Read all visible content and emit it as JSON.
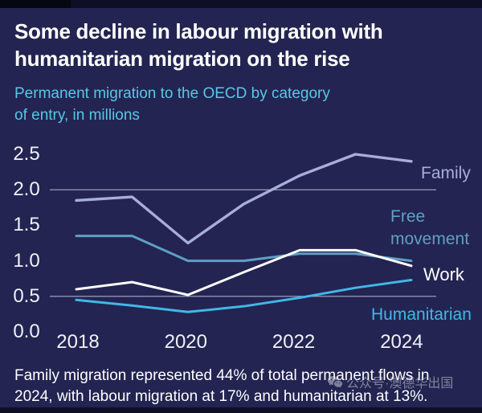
{
  "header": {
    "title": "Some decline in labour migration with\nhumanitarian migration on the rise",
    "subtitle": "Permanent migration to the OECD by category\nof entry, in millions"
  },
  "chart_data": {
    "type": "line",
    "title": "Some decline in labour migration with humanitarian migration on the rise",
    "subtitle": "Permanent migration to the OECD by category of entry, in millions",
    "unit": "millions",
    "x": [
      2018,
      2019,
      2020,
      2021,
      2022,
      2023,
      2024
    ],
    "x_tick_labels": [
      "2018",
      "2020",
      "2022",
      "2024"
    ],
    "y_ticks": [
      "2.5",
      "2.0",
      "1.5",
      "1.0",
      "0.5",
      "0.0"
    ],
    "ylim": [
      0.0,
      2.5
    ],
    "gridline_values": [
      2.0,
      0.5
    ],
    "grid_on": false,
    "legend_position": "right-inline",
    "series": [
      {
        "name": "Family",
        "color": "#a8aed8",
        "values": [
          1.85,
          1.9,
          1.25,
          1.8,
          2.2,
          2.5,
          2.4
        ]
      },
      {
        "name": "Free movement",
        "color": "#5f9fc4",
        "values": [
          1.35,
          1.35,
          1.0,
          1.0,
          1.1,
          1.1,
          1.0
        ]
      },
      {
        "name": "Work",
        "color": "#ffffff",
        "values": [
          0.6,
          0.7,
          0.52,
          0.84,
          1.15,
          1.15,
          0.93
        ]
      },
      {
        "name": "Humanitarian",
        "color": "#41b7e8",
        "values": [
          0.45,
          0.37,
          0.28,
          0.36,
          0.48,
          0.62,
          0.73
        ]
      }
    ]
  },
  "colors": {
    "background": "#232451",
    "gridline": "#a9adc9",
    "axis_text": "#f0f1f7",
    "title_text": "#ffffff",
    "subtitle_text": "#58c7e6"
  },
  "footer": {
    "note": "Family migration represented 44% of total permanent flows in\n2024, with labour migration at 17% and humanitarian at 13%."
  },
  "watermark": {
    "icon": "wechat-icon",
    "text": "公众号·澳德华出国"
  }
}
